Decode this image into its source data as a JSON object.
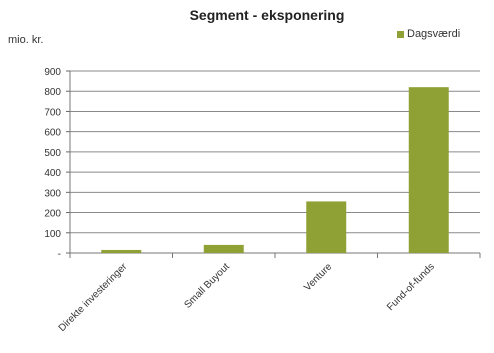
{
  "chart_data": {
    "type": "bar",
    "title": "Segment - eksponering",
    "ylabel": "mio. kr.",
    "xlabel": "",
    "categories": [
      "Direkte investeringer",
      "Small Buyout",
      "Venture",
      "Fund-of-funds"
    ],
    "series": [
      {
        "name": "Dagsværdi",
        "values": [
          15,
          40,
          255,
          820
        ]
      }
    ],
    "ylim": [
      0,
      900
    ],
    "yticks": [
      0,
      100,
      200,
      300,
      400,
      500,
      600,
      700,
      800,
      900
    ],
    "ytick_labels": [
      "-",
      "100",
      "200",
      "300",
      "400",
      "500",
      "600",
      "700",
      "800",
      "900"
    ],
    "grid": true,
    "legend_position": "top-right",
    "bar_color": "#8fa035"
  }
}
